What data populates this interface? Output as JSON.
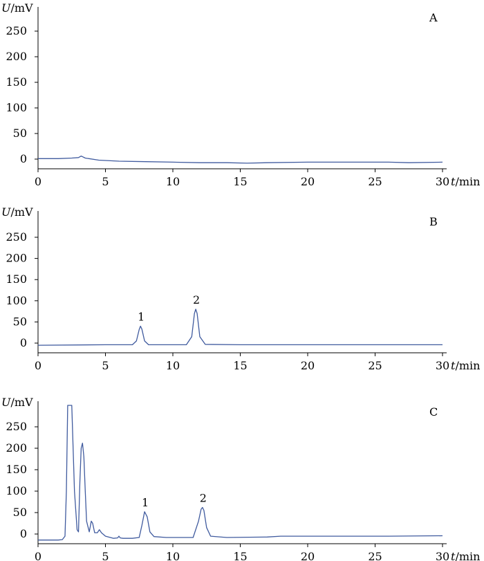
{
  "colors": {
    "trace": "#3f5a9e",
    "axis": "#000000",
    "background": "#ffffff"
  },
  "chart_data": [
    {
      "type": "line",
      "panel_label": "A",
      "ylabel_var": "U",
      "ylabel_unit": "/mV",
      "xlabel_var": "t",
      "xlabel_unit": "/min",
      "xlim": [
        0,
        30
      ],
      "ylim": [
        -12,
        300
      ],
      "xticks": [
        0,
        5,
        10,
        15,
        20,
        25,
        30
      ],
      "yticks": [
        0,
        50,
        100,
        150,
        200,
        250
      ],
      "peak_labels": [],
      "series": [
        {
          "x": [
            0,
            1.5,
            2.5,
            3.0,
            3.2,
            3.5,
            4.5,
            6,
            8,
            10,
            12,
            14,
            15.5,
            17,
            20,
            23,
            26,
            27.5,
            30
          ],
          "y": [
            1,
            1,
            2,
            3,
            6,
            2,
            -2,
            -4,
            -5,
            -6,
            -7,
            -7,
            -8,
            -7,
            -6,
            -6,
            -6,
            -7,
            -6
          ]
        }
      ]
    },
    {
      "type": "line",
      "panel_label": "B",
      "ylabel_var": "U",
      "ylabel_unit": "/mV",
      "xlabel_var": "t",
      "xlabel_unit": "/min",
      "xlim": [
        0,
        30
      ],
      "ylim": [
        -12,
        300
      ],
      "xticks": [
        0,
        5,
        10,
        15,
        20,
        25,
        30
      ],
      "yticks": [
        0,
        50,
        100,
        150,
        200,
        250
      ],
      "peak_labels": [
        {
          "text": "1",
          "x": 7.6,
          "y": 40
        },
        {
          "text": "2",
          "x": 11.7,
          "y": 80
        }
      ],
      "series": [
        {
          "x": [
            0,
            5,
            7.0,
            7.3,
            7.5,
            7.6,
            7.7,
            7.9,
            8.2,
            9,
            11.0,
            11.4,
            11.6,
            11.7,
            11.8,
            12.0,
            12.4,
            15,
            20,
            25,
            30
          ],
          "y": [
            -5,
            -4,
            -4,
            5,
            32,
            40,
            33,
            5,
            -4,
            -4,
            -4,
            15,
            70,
            80,
            70,
            15,
            -3,
            -4,
            -4,
            -4,
            -4
          ]
        }
      ]
    },
    {
      "type": "line",
      "panel_label": "C",
      "ylabel_var": "U",
      "ylabel_unit": "/mV",
      "xlabel_var": "t",
      "xlabel_unit": "/min",
      "xlim": [
        0,
        30
      ],
      "ylim": [
        -12,
        300
      ],
      "xticks": [
        0,
        5,
        10,
        15,
        20,
        25,
        30
      ],
      "yticks": [
        0,
        50,
        100,
        150,
        200,
        250
      ],
      "peak_labels": [
        {
          "text": "1",
          "x": 7.9,
          "y": 52
        },
        {
          "text": "2",
          "x": 12.2,
          "y": 62
        }
      ],
      "series": [
        {
          "x": [
            0,
            1.5,
            1.8,
            2.0,
            2.1,
            2.2,
            2.35,
            2.5,
            2.7,
            2.9,
            3.0,
            3.1,
            3.2,
            3.3,
            3.4,
            3.5,
            3.6,
            3.8,
            3.95,
            4.05,
            4.2,
            4.4,
            4.55,
            4.7,
            5.0,
            5.6,
            5.9,
            6.0,
            6.1,
            6.3,
            7.0,
            7.5,
            7.7,
            7.9,
            8.1,
            8.3,
            8.6,
            9.5,
            11.5,
            11.9,
            12.1,
            12.2,
            12.3,
            12.5,
            12.8,
            14,
            17,
            18,
            22,
            26,
            30
          ],
          "y": [
            -14,
            -14,
            -13,
            -5,
            100,
            300,
            300,
            300,
            100,
            10,
            5,
            120,
            200,
            212,
            180,
            100,
            30,
            5,
            30,
            25,
            3,
            3,
            10,
            3,
            -5,
            -10,
            -9,
            -5,
            -9,
            -10,
            -10,
            -8,
            20,
            52,
            40,
            5,
            -6,
            -8,
            -8,
            30,
            58,
            62,
            55,
            15,
            -5,
            -8,
            -7,
            -5,
            -5,
            -5,
            -4
          ]
        }
      ]
    }
  ]
}
